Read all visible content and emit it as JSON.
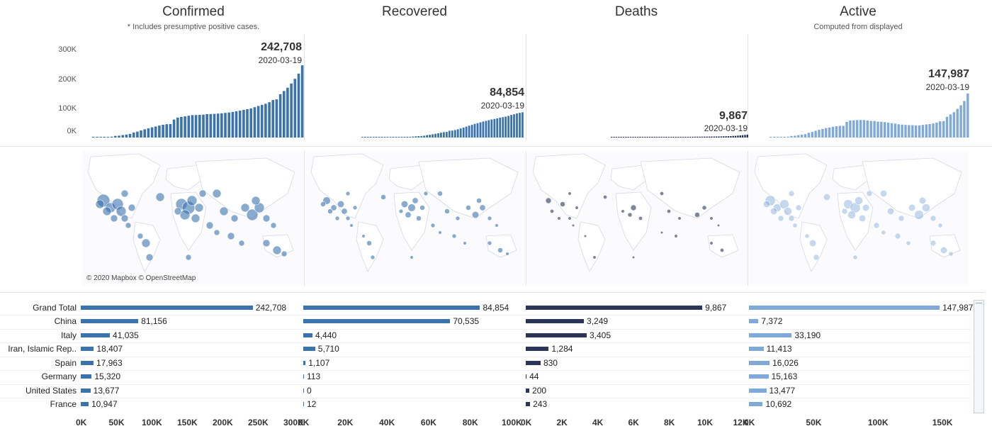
{
  "panels": [
    {
      "title": "Confirmed",
      "subtitle": "* Includes presumptive positive cases.",
      "color": "#3b73ad",
      "total_label": "242,708",
      "date_label": "2020-03-19"
    },
    {
      "title": "Recovered",
      "subtitle": "",
      "color": "#3b73ad",
      "total_label": "84,854",
      "date_label": "2020-03-19"
    },
    {
      "title": "Deaths",
      "subtitle": "",
      "color": "#2b3557",
      "total_label": "9,867",
      "date_label": "2020-03-19"
    },
    {
      "title": "Active",
      "subtitle": "Computed from displayed",
      "color": "#7fa9d8",
      "total_label": "147,987",
      "date_label": "2020-03-19"
    }
  ],
  "map_credit": "© 2020 Mapbox © OpenStreetMap",
  "y_axis_ticks": [
    "300K",
    "200K",
    "100K",
    "0K"
  ],
  "chart_data": [
    {
      "type": "bar",
      "title": "Confirmed",
      "ylim": [
        0,
        300000
      ],
      "series": [
        {
          "name": "Confirmed",
          "values": [
            555,
            654,
            941,
            1434,
            2118,
            2927,
            5578,
            6166,
            8234,
            9927,
            12038,
            16787,
            19881,
            23892,
            27635,
            30817,
            34391,
            37120,
            40150,
            42762,
            44802,
            45221,
            60368,
            66885,
            69030,
            71224,
            73258,
            75136,
            75639,
            76197,
            76823,
            78579,
            78965,
            79568,
            80413,
            81395,
            82754,
            84120,
            86011,
            88369,
            90306,
            92840,
            95120,
            97886,
            101800,
            105847,
            109821,
            113590,
            118620,
            125865,
            128343,
            145193,
            156097,
            167449,
            181546,
            197102,
            214821,
            242708
          ]
        }
      ]
    },
    {
      "type": "bar",
      "title": "Recovered",
      "ylim": [
        0,
        300000
      ],
      "series": [
        {
          "name": "Recovered",
          "values": [
            28,
            30,
            36,
            39,
            52,
            61,
            107,
            126,
            143,
            222,
            284,
            472,
            623,
            852,
            1124,
            1487,
            2011,
            2616,
            3244,
            3946,
            4683,
            5150,
            6295,
            8058,
            9395,
            10865,
            12583,
            14352,
            16121,
            18177,
            18890,
            22886,
            23394,
            25227,
            27905,
            30384,
            33277,
            36711,
            39782,
            42716,
            45602,
            48228,
            51170,
            53796,
            55865,
            58358,
            60694,
            62494,
            64404,
            67003,
            68324,
            70251,
            72624,
            76034,
            78088,
            80840,
            83207,
            84854
          ]
        }
      ]
    },
    {
      "type": "bar",
      "title": "Deaths",
      "ylim": [
        0,
        300000
      ],
      "series": [
        {
          "name": "Deaths",
          "values": [
            17,
            18,
            26,
            42,
            56,
            82,
            131,
            133,
            171,
            213,
            259,
            362,
            426,
            492,
            564,
            634,
            719,
            806,
            906,
            1013,
            1113,
            1118,
            1371,
            1523,
            1666,
            1770,
            1868,
            2007,
            2122,
            2247,
            2251,
            2458,
            2469,
            2629,
            2708,
            2770,
            2814,
            2872,
            2941,
            2996,
            3085,
            3160,
            3254,
            3348,
            3460,
            3558,
            3802,
            3988,
            4262,
            4615,
            4720,
            5404,
            5819,
            6440,
            7126,
            7905,
            8733,
            9867
          ]
        }
      ]
    },
    {
      "type": "bar",
      "title": "Active",
      "ylim": [
        0,
        300000
      ],
      "series": [
        {
          "name": "Active",
          "values": [
            510,
            606,
            879,
            1353,
            2010,
            2784,
            5340,
            5907,
            7920,
            9492,
            11495,
            15953,
            18832,
            22548,
            25947,
            28696,
            31661,
            33698,
            36000,
            37803,
            39006,
            38953,
            52702,
            57304,
            57969,
            58589,
            58807,
            58777,
            57396,
            55773,
            55682,
            53235,
            53102,
            51712,
            49800,
            48241,
            46663,
            44537,
            43288,
            42657,
            41619,
            41452,
            40696,
            40742,
            42475,
            43931,
            45325,
            47108,
            49954,
            54247,
            55299,
            69538,
            77654,
            84975,
            96332,
            108357,
            122881,
            147987
          ]
        }
      ]
    }
  ],
  "bar_table": {
    "countries": [
      "Grand Total",
      "China",
      "Italy",
      "Iran, Islamic Rep..",
      "Spain",
      "Germany",
      "United States",
      "France"
    ],
    "columns": [
      {
        "name": "Confirmed",
        "max": 300000,
        "labels": [
          "242,708",
          "81,156",
          "41,035",
          "18,407",
          "17,963",
          "15,320",
          "13,677",
          "10,947"
        ],
        "values": [
          242708,
          81156,
          41035,
          18407,
          17963,
          15320,
          13677,
          10947
        ],
        "ticks": [
          "0K",
          "50K",
          "100K",
          "150K",
          "200K",
          "250K",
          "300K"
        ],
        "tick_values": [
          0,
          50000,
          100000,
          150000,
          200000,
          250000,
          300000
        ]
      },
      {
        "name": "Recovered",
        "max": 100000,
        "labels": [
          "84,854",
          "70,535",
          "4,440",
          "5,710",
          "1,107",
          "113",
          "0",
          "12"
        ],
        "values": [
          84854,
          70535,
          4440,
          5710,
          1107,
          113,
          0,
          12
        ],
        "ticks": [
          "0K",
          "20K",
          "40K",
          "60K",
          "80K",
          "100K"
        ],
        "tick_values": [
          0,
          20000,
          40000,
          60000,
          80000,
          100000
        ]
      },
      {
        "name": "Deaths",
        "max": 12000,
        "labels": [
          "9,867",
          "3,249",
          "3,405",
          "1,284",
          "830",
          "44",
          "200",
          "243"
        ],
        "values": [
          9867,
          3249,
          3405,
          1284,
          830,
          44,
          200,
          243
        ],
        "ticks": [
          "0K",
          "2K",
          "4K",
          "6K",
          "8K",
          "10K",
          "12K"
        ],
        "tick_values": [
          0,
          2000,
          4000,
          6000,
          8000,
          10000,
          12000
        ]
      },
      {
        "name": "Active",
        "max": 165000,
        "labels": [
          "147,987",
          "7,372",
          "33,190",
          "11,413",
          "16,026",
          "15,163",
          "13,477",
          "10,692"
        ],
        "values": [
          147987,
          7372,
          33190,
          11413,
          16026,
          15163,
          13477,
          10692
        ],
        "ticks": [
          "0K",
          "50K",
          "100K",
          "150K"
        ],
        "tick_values": [
          0,
          50000,
          100000,
          150000
        ]
      }
    ]
  }
}
